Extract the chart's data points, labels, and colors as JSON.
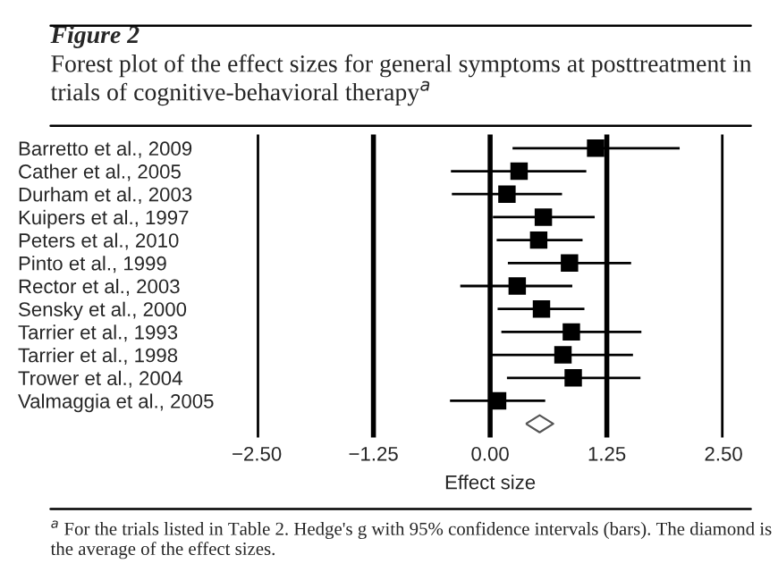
{
  "chart_data": {
    "type": "scatter",
    "orientation": "horizontal",
    "title": "Figure 2",
    "subtitle": "Forest plot of the effect sizes for general symptoms at posttreatment in trials of cognitive-behavioral therapy$^{a}$",
    "xlabel": "Effect size",
    "categories": [
      "Barretto et al., 2009",
      "Cather et al., 2005",
      "Durham et al., 2003",
      "Kuipers et al., 1997",
      "Peters et al., 2010",
      "Pinto et al., 1999",
      "Rector et al., 2003",
      "Sensky et al., 2000",
      "Tarrier et al., 1993",
      "Tarrier et al., 1998",
      "Trower et al., 2004",
      "Valmaggia et al., 2005",
      null
    ],
    "series": [
      {
        "color": "#000000",
        "marker": "square",
        "values": [
          1.13,
          0.31,
          0.18,
          0.57,
          0.52,
          0.85,
          0.29,
          0.55,
          0.87,
          0.78,
          0.89,
          0.08,
          null
        ],
        "errors": [
          [
            0.24,
            2.03
          ],
          [
            -0.42,
            1.03
          ],
          [
            -0.41,
            0.77
          ],
          [
            0.03,
            1.12
          ],
          [
            0.07,
            0.99
          ],
          [
            0.19,
            1.51
          ],
          [
            -0.32,
            0.88
          ],
          [
            0.08,
            1.01
          ],
          [
            0.12,
            1.62
          ],
          [
            0.01,
            1.53
          ],
          [
            0.18,
            1.61
          ],
          [
            -0.43,
            0.59
          ],
          null
        ]
      },
      {
        "color": "#555555",
        "marker": "diamond",
        "values": [
          null,
          null,
          null,
          null,
          null,
          null,
          null,
          null,
          null,
          null,
          null,
          null,
          0.53
        ]
      }
    ],
    "xlim": [
      -2.5,
      2.5
    ],
    "xticks": [
      {
        "value": -2.5,
        "label": "−2.50"
      },
      {
        "value": -1.25,
        "label": "−1.25"
      },
      {
        "value": 0,
        "label": "0.00"
      },
      {
        "value": 1.25,
        "label": "1.25"
      },
      {
        "value": 2.5,
        "label": "2.50"
      }
    ],
    "grid": "x",
    "legend": false,
    "annotations": [
      "$^{a}$ For the trials listed in Table 2. Hedge's g with 95% confidence intervals (bars). The diamond is the average of the effect sizes."
    ]
  }
}
